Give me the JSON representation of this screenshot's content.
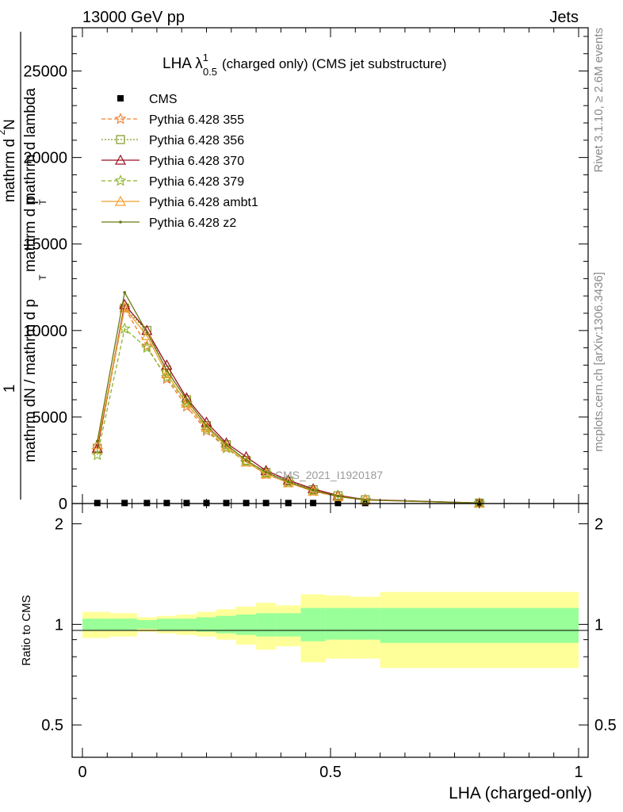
{
  "header": {
    "left": "13000 GeV pp",
    "right": "Jets"
  },
  "title": {
    "main": "LHA λ",
    "sup": "1",
    "sub": "0.5",
    "suffix": "(charged only) (CMS jet substructure)"
  },
  "side_labels": {
    "rivet": "Rivet 3.1.10, ≥ 2.6M events",
    "mcplots": "mcplots.cern.ch [arXiv:1306.3436]"
  },
  "watermark": "CMS_2021_I1920187",
  "ratio_ylabel": "Ratio to CMS",
  "colors": {
    "cms": "#000000",
    "p355": "#f07f30",
    "p356": "#7f9a1f",
    "p370": "#9a1020",
    "p379": "#8ab52a",
    "ambt1": "#f0a030",
    "z2": "#6a7a10",
    "band_inner": "#99ff99",
    "band_outer": "#ffff99"
  },
  "chart_data": {
    "type": "line",
    "xlabel": "LHA (charged-only)",
    "ylabel_lines": [
      "1",
      "mathrm dN / mathrm d p",
      "T",
      "mathrm d p",
      "T",
      "mathrm d lambda",
      "mathrm d",
      "2",
      "N"
    ],
    "xlim": [
      0,
      1
    ],
    "ylim": [
      0,
      27500
    ],
    "ratio_ylim": [
      0.4,
      2.3
    ],
    "x_ticks": [
      "0",
      "0.5",
      "1"
    ],
    "y_ticks": [
      "0",
      "5000",
      "10000",
      "15000",
      "20000",
      "25000"
    ],
    "ratio_ticks": [
      "0.5",
      "1",
      "2"
    ],
    "x": [
      0.03,
      0.085,
      0.13,
      0.17,
      0.21,
      0.25,
      0.29,
      0.33,
      0.37,
      0.415,
      0.465,
      0.515,
      0.57,
      0.8
    ],
    "series": [
      {
        "name": "CMS",
        "marker": "square",
        "values": [
          30,
          30,
          30,
          30,
          30,
          30,
          30,
          30,
          30,
          30,
          30,
          30,
          30,
          30
        ]
      },
      {
        "name": "Pythia 6.428 355",
        "marker": "star",
        "dash": "5,3",
        "values": [
          3100,
          11300,
          9100,
          7200,
          5600,
          4200,
          3200,
          2400,
          1700,
          1200,
          700,
          400,
          200,
          25
        ]
      },
      {
        "name": "Pythia 6.428 356",
        "marker": "open-square",
        "dash": "2,2",
        "values": [
          3200,
          11300,
          10000,
          7700,
          6000,
          4500,
          3400,
          2500,
          1800,
          1300,
          800,
          450,
          220,
          30
        ]
      },
      {
        "name": "Pythia 6.428 370",
        "marker": "open-triangle",
        "dash": "",
        "values": [
          3200,
          11500,
          10000,
          8000,
          6100,
          4700,
          3500,
          2700,
          1900,
          1350,
          850,
          470,
          230,
          30
        ]
      },
      {
        "name": "Pythia 6.428 379",
        "marker": "star",
        "dash": "5,3",
        "values": [
          2800,
          10100,
          9000,
          7300,
          5800,
          4300,
          3200,
          2400,
          1750,
          1250,
          750,
          420,
          210,
          25
        ]
      },
      {
        "name": "Pythia 6.428 ambt1",
        "marker": "open-triangle",
        "dash": "",
        "values": [
          3400,
          11300,
          9700,
          7500,
          5800,
          4400,
          3300,
          2400,
          1700,
          1200,
          720,
          400,
          200,
          25
        ]
      },
      {
        "name": "Pythia 6.428 z2",
        "marker": "dot",
        "dash": "",
        "values": [
          3600,
          12200,
          9900,
          7700,
          6000,
          4500,
          3400,
          2500,
          1800,
          1250,
          760,
          420,
          210,
          28
        ]
      }
    ],
    "ratio_band": {
      "edges": [
        0,
        0.055,
        0.11,
        0.15,
        0.19,
        0.23,
        0.27,
        0.31,
        0.35,
        0.39,
        0.44,
        0.49,
        0.54,
        0.6,
        1.0
      ],
      "inner_lo": [
        0.96,
        0.96,
        0.97,
        0.96,
        0.96,
        0.95,
        0.94,
        0.93,
        0.92,
        0.92,
        0.89,
        0.9,
        0.9,
        0.88
      ],
      "inner_hi": [
        1.04,
        1.04,
        1.03,
        1.04,
        1.04,
        1.05,
        1.06,
        1.07,
        1.08,
        1.08,
        1.12,
        1.12,
        1.12,
        1.12
      ],
      "outer_lo": [
        0.91,
        0.92,
        0.95,
        0.94,
        0.93,
        0.92,
        0.9,
        0.87,
        0.84,
        0.86,
        0.77,
        0.79,
        0.79,
        0.74
      ],
      "outer_hi": [
        1.09,
        1.08,
        1.05,
        1.06,
        1.07,
        1.09,
        1.11,
        1.13,
        1.16,
        1.14,
        1.23,
        1.22,
        1.21,
        1.25
      ]
    }
  }
}
